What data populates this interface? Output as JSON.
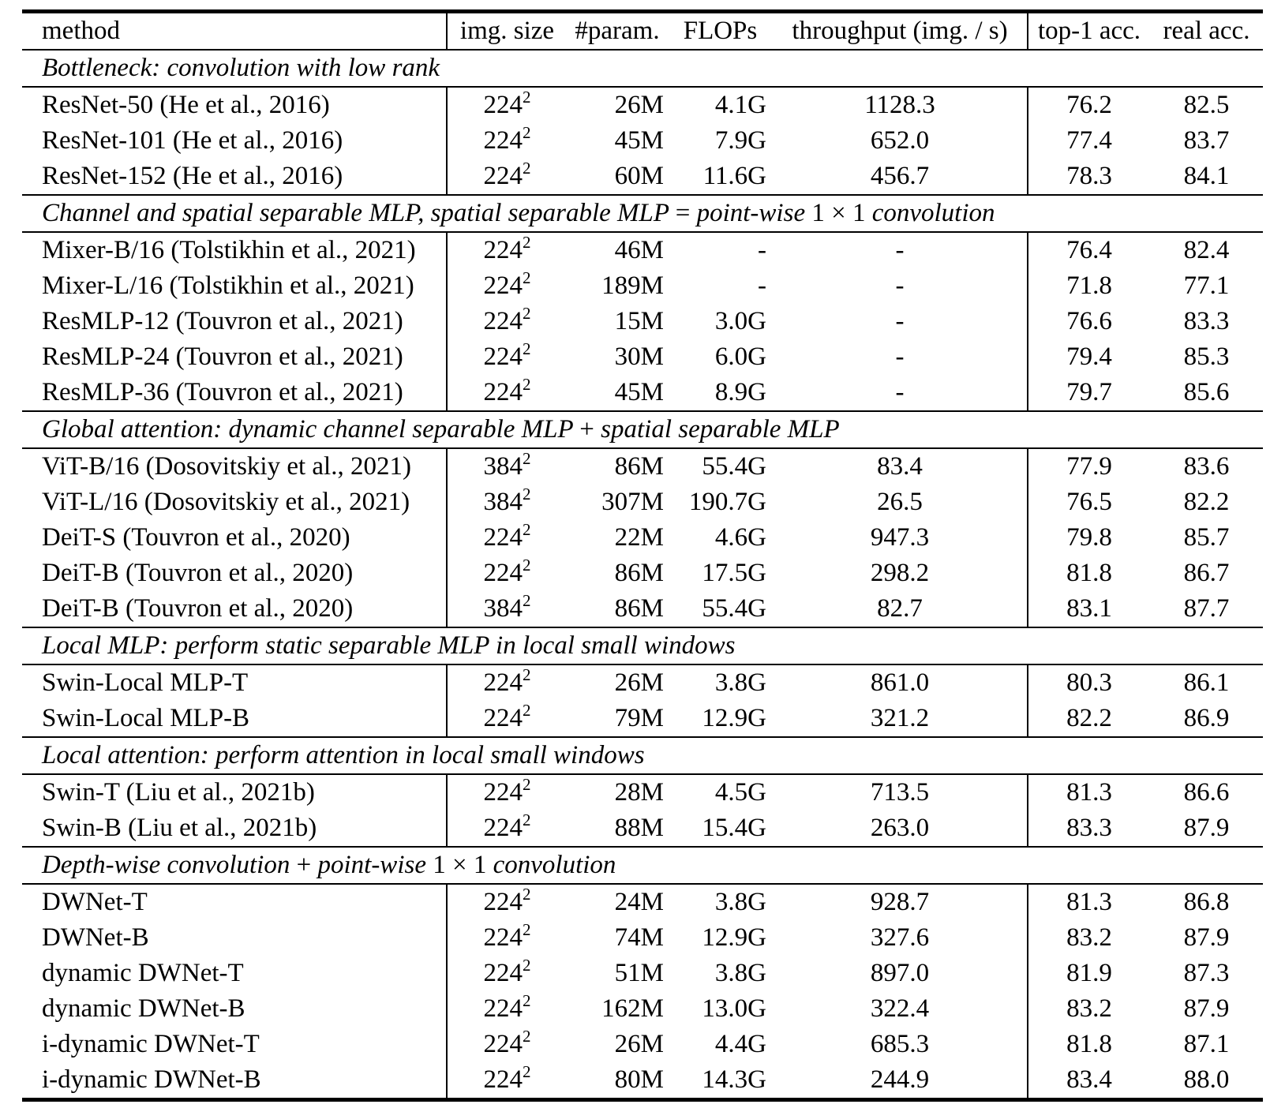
{
  "table": {
    "columns": {
      "method": "method",
      "img_size": "img. size",
      "params": "#param.",
      "flops": "FLOPs",
      "throughput": "throughput (img. / s)",
      "top1": "top-1 acc.",
      "real": "real acc."
    },
    "sections": [
      {
        "parts": [
          {
            "text": "Bottleneck: convolution with low rank",
            "style": "italic"
          }
        ],
        "rows": [
          {
            "method": "ResNet-50 (He et al., 2016)",
            "size": "224",
            "exp": "2",
            "params": "26M",
            "flops": "4.1G",
            "tp": "1128.3",
            "top1": "76.2",
            "real": "82.5"
          },
          {
            "method": "ResNet-101 (He et al., 2016)",
            "size": "224",
            "exp": "2",
            "params": "45M",
            "flops": "7.9G",
            "tp": "652.0",
            "top1": "77.4",
            "real": "83.7"
          },
          {
            "method": "ResNet-152 (He et al., 2016)",
            "size": "224",
            "exp": "2",
            "params": "60M",
            "flops": "11.6G",
            "tp": "456.7",
            "top1": "78.3",
            "real": "84.1"
          }
        ]
      },
      {
        "parts": [
          {
            "text": "Channel and spatial separable MLP, spatial separable MLP ",
            "style": "italic"
          },
          {
            "text": "=",
            "style": "upright"
          },
          {
            "text": " point-wise ",
            "style": "italic"
          },
          {
            "text": "1 × 1",
            "style": "upright"
          },
          {
            "text": " convolution",
            "style": "italic"
          }
        ],
        "rows": [
          {
            "method": "Mixer-B/16 (Tolstikhin et al., 2021)",
            "size": "224",
            "exp": "2",
            "params": "46M",
            "flops": "-",
            "tp": "-",
            "top1": "76.4",
            "real": "82.4"
          },
          {
            "method": "Mixer-L/16 (Tolstikhin et al., 2021)",
            "size": "224",
            "exp": "2",
            "params": "189M",
            "flops": "-",
            "tp": "-",
            "top1": "71.8",
            "real": "77.1"
          },
          {
            "method": "ResMLP-12 (Touvron et al., 2021)",
            "size": "224",
            "exp": "2",
            "params": "15M",
            "flops": "3.0G",
            "tp": "-",
            "top1": "76.6",
            "real": "83.3"
          },
          {
            "method": "ResMLP-24 (Touvron et al., 2021)",
            "size": "224",
            "exp": "2",
            "params": "30M",
            "flops": "6.0G",
            "tp": "-",
            "top1": "79.4",
            "real": "85.3"
          },
          {
            "method": "ResMLP-36 (Touvron et al., 2021)",
            "size": "224",
            "exp": "2",
            "params": "45M",
            "flops": "8.9G",
            "tp": "-",
            "top1": "79.7",
            "real": "85.6"
          }
        ]
      },
      {
        "parts": [
          {
            "text": "Global attention: dynamic channel separable MLP ",
            "style": "italic"
          },
          {
            "text": "+",
            "style": "upright"
          },
          {
            "text": " spatial separable MLP",
            "style": "italic"
          }
        ],
        "rows": [
          {
            "method": "ViT-B/16 (Dosovitskiy et al., 2021)",
            "size": "384",
            "exp": "2",
            "params": "86M",
            "flops": "55.4G",
            "tp": "83.4",
            "top1": "77.9",
            "real": "83.6"
          },
          {
            "method": "ViT-L/16 (Dosovitskiy et al., 2021)",
            "size": "384",
            "exp": "2",
            "params": "307M",
            "flops": "190.7G",
            "tp": "26.5",
            "top1": "76.5",
            "real": "82.2"
          },
          {
            "method": "DeiT-S (Touvron et al., 2020)",
            "size": "224",
            "exp": "2",
            "params": "22M",
            "flops": "4.6G",
            "tp": "947.3",
            "top1": "79.8",
            "real": "85.7"
          },
          {
            "method": "DeiT-B (Touvron et al., 2020)",
            "size": "224",
            "exp": "2",
            "params": "86M",
            "flops": "17.5G",
            "tp": "298.2",
            "top1": "81.8",
            "real": "86.7"
          },
          {
            "method": "DeiT-B (Touvron et al., 2020)",
            "size": "384",
            "exp": "2",
            "params": "86M",
            "flops": "55.4G",
            "tp": "82.7",
            "top1": "83.1",
            "real": "87.7"
          }
        ]
      },
      {
        "parts": [
          {
            "text": "Local MLP: perform static separable MLP in local small windows",
            "style": "italic"
          }
        ],
        "rows": [
          {
            "method": "Swin-Local MLP-T",
            "size": "224",
            "exp": "2",
            "params": "26M",
            "flops": "3.8G",
            "tp": "861.0",
            "top1": "80.3",
            "real": "86.1"
          },
          {
            "method": "Swin-Local MLP-B",
            "size": "224",
            "exp": "2",
            "params": "79M",
            "flops": "12.9G",
            "tp": "321.2",
            "top1": "82.2",
            "real": "86.9"
          }
        ]
      },
      {
        "parts": [
          {
            "text": "Local attention: perform attention in local small windows",
            "style": "italic"
          }
        ],
        "rows": [
          {
            "method": "Swin-T (Liu et al., 2021b)",
            "size": "224",
            "exp": "2",
            "params": "28M",
            "flops": "4.5G",
            "tp": "713.5",
            "top1": "81.3",
            "real": "86.6"
          },
          {
            "method": "Swin-B (Liu et al., 2021b)",
            "size": "224",
            "exp": "2",
            "params": "88M",
            "flops": "15.4G",
            "tp": "263.0",
            "top1": "83.3",
            "real": "87.9"
          }
        ]
      },
      {
        "parts": [
          {
            "text": "Depth-wise convolution ",
            "style": "italic"
          },
          {
            "text": "+",
            "style": "upright"
          },
          {
            "text": " point-wise ",
            "style": "italic"
          },
          {
            "text": "1 × 1",
            "style": "upright"
          },
          {
            "text": " convolution",
            "style": "italic"
          }
        ],
        "rows": [
          {
            "method": "DWNet-T",
            "size": "224",
            "exp": "2",
            "params": "24M",
            "flops": "3.8G",
            "tp": "928.7",
            "top1": "81.3",
            "real": "86.8"
          },
          {
            "method": "DWNet-B",
            "size": "224",
            "exp": "2",
            "params": "74M",
            "flops": "12.9G",
            "tp": "327.6",
            "top1": "83.2",
            "real": "87.9"
          },
          {
            "method": "dynamic DWNet-T",
            "size": "224",
            "exp": "2",
            "params": "51M",
            "flops": "3.8G",
            "tp": "897.0",
            "top1": "81.9",
            "real": "87.3"
          },
          {
            "method": "dynamic DWNet-B",
            "size": "224",
            "exp": "2",
            "params": "162M",
            "flops": "13.0G",
            "tp": "322.4",
            "top1": "83.2",
            "real": "87.9"
          },
          {
            "method": "i-dynamic DWNet-T",
            "size": "224",
            "exp": "2",
            "params": "26M",
            "flops": "4.4G",
            "tp": "685.3",
            "top1": "81.8",
            "real": "87.1"
          },
          {
            "method": "i-dynamic DWNet-B",
            "size": "224",
            "exp": "2",
            "params": "80M",
            "flops": "14.3G",
            "tp": "244.9",
            "top1": "83.4",
            "real": "88.0"
          }
        ]
      }
    ]
  }
}
